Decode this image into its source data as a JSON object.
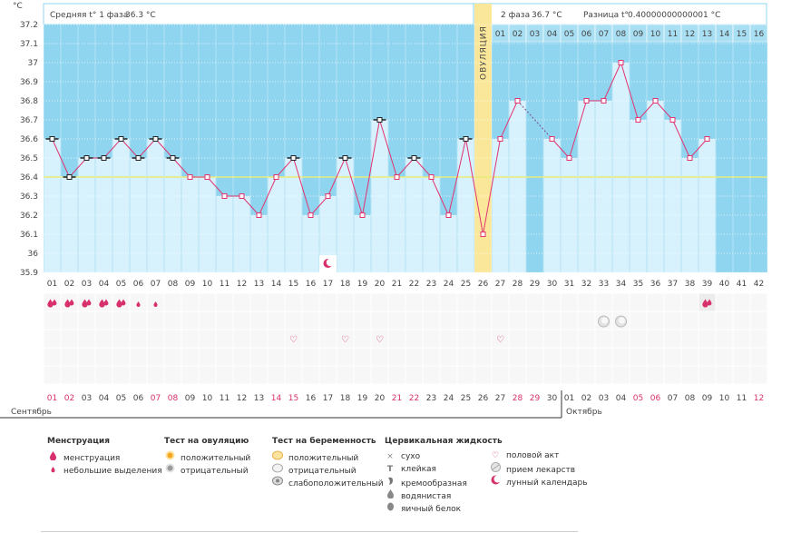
{
  "chart_data": {
    "type": "line",
    "ylabel": "°C",
    "ylim": [
      35.9,
      37.25
    ],
    "yticks": [
      "37.2",
      "37.1",
      "37",
      "36.9",
      "36.8",
      "36.7",
      "36.6",
      "36.5",
      "36.4",
      "36.3",
      "36.2",
      "36.1",
      "36",
      "35.9"
    ],
    "coverline": 36.4,
    "ovulation_day": 26,
    "ovulation_label": "ОВУЛЯЦИЯ",
    "phase1": {
      "label": "Средняя t° 1 фаза",
      "value": "36.3 °C"
    },
    "phase2": {
      "label": "2 фаза",
      "value": "36.7 °C"
    },
    "difference": {
      "label": "Разница t°",
      "value": "0.40000000000001 °C"
    },
    "cycle_days": [
      "01",
      "02",
      "03",
      "04",
      "05",
      "06",
      "07",
      "08",
      "09",
      "10",
      "11",
      "12",
      "13",
      "14",
      "15",
      "16",
      "17",
      "18",
      "19",
      "20",
      "21",
      "22",
      "23",
      "24",
      "25",
      "26",
      "27",
      "28",
      "29",
      "30",
      "31",
      "32",
      "33",
      "34",
      "35",
      "36",
      "37",
      "38",
      "39",
      "40",
      "41",
      "42"
    ],
    "top_dates": [
      "01",
      "02",
      "03",
      "04",
      "05",
      "06",
      "07",
      "08",
      "09",
      "10",
      "11",
      "12",
      "13",
      "14",
      "15",
      "16"
    ],
    "temps": [
      36.6,
      36.4,
      36.5,
      36.5,
      36.6,
      36.5,
      36.6,
      36.5,
      36.4,
      36.4,
      36.3,
      36.3,
      36.2,
      36.4,
      36.5,
      36.2,
      36.3,
      36.5,
      36.2,
      36.7,
      36.4,
      36.5,
      36.4,
      36.2,
      36.6,
      36.1,
      36.6,
      36.8,
      null,
      36.6,
      36.5,
      36.8,
      36.8,
      37.0,
      36.7,
      36.8,
      36.7,
      36.5,
      36.6,
      null,
      null,
      null
    ],
    "black_marker_days": [
      1,
      2,
      3,
      4,
      5,
      6,
      7,
      8,
      15,
      18,
      20,
      22,
      25
    ],
    "menstruation": {
      "heavy_days": [
        1,
        2,
        3,
        4,
        5
      ],
      "light_days": [
        6,
        7
      ],
      "highlight_days": [
        39
      ]
    },
    "ovulation_test_negative_days": [
      33,
      34
    ],
    "intercourse_days": [
      15,
      18,
      20,
      27
    ],
    "moon_days": [
      17
    ],
    "calendar_dates": [
      "01",
      "02",
      "03",
      "04",
      "05",
      "06",
      "07",
      "08",
      "09",
      "10",
      "11",
      "12",
      "13",
      "14",
      "15",
      "16",
      "17",
      "18",
      "19",
      "20",
      "21",
      "22",
      "23",
      "24",
      "25",
      "26",
      "27",
      "28",
      "29",
      "30",
      "01",
      "02",
      "03",
      "04",
      "05",
      "06",
      "07",
      "08",
      "09",
      "10",
      "11",
      "12"
    ],
    "red_date_indices": [
      0,
      1,
      6,
      7,
      13,
      14,
      20,
      21,
      27,
      28,
      34,
      35,
      41
    ],
    "months": {
      "first": "Сентябрь",
      "second": "Октябрь"
    }
  },
  "legend": {
    "menstruation": {
      "title": "Менструация",
      "items": [
        "менструация",
        "небольшие выделения"
      ]
    },
    "ovulation_test": {
      "title": "Тест на овуляцию",
      "items": [
        "положительный",
        "отрицательный"
      ]
    },
    "pregnancy_test": {
      "title": "Тест на беременность",
      "items": [
        "положительный",
        "отрицательный",
        "слабоположительный"
      ]
    },
    "cervical": {
      "title": "Цервикальная жидкость",
      "items": [
        "сухо",
        "клейкая",
        "кремообразная",
        "водянистая",
        "яичный белок"
      ]
    },
    "other": {
      "items": [
        "половой акт",
        "прием лекарств",
        "лунный календарь"
      ]
    }
  },
  "colors": {
    "chart_bg": "#8fd5ef",
    "bar": "#d7f1fd",
    "line": "#e2336f",
    "coverline": "#e7ec7a",
    "ovulation": "#fbe79a",
    "red": "#d8306c"
  }
}
